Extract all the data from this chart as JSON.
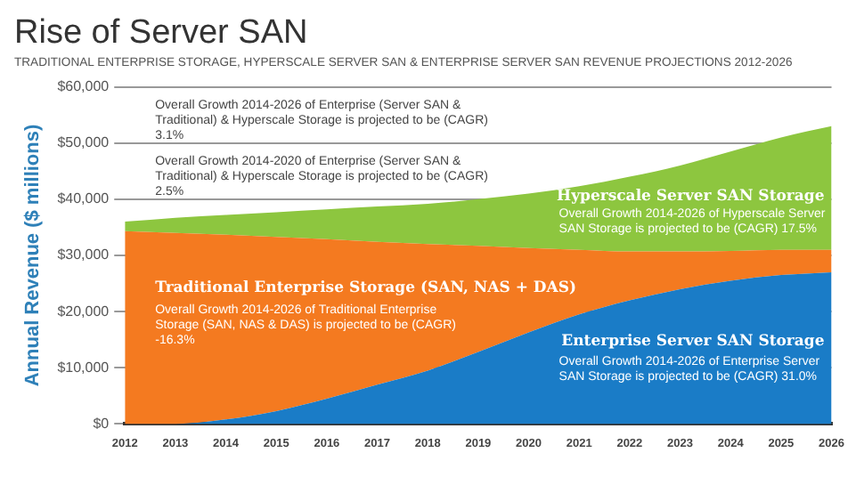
{
  "chart_data": {
    "type": "area",
    "stacked": true,
    "title": "Rise of Server SAN",
    "subtitle": "TRADITIONAL ENTERPRISE STORAGE, HYPERSCALE SERVER SAN & ENTERPRISE SERVER SAN REVENUE PROJECTIONS 2012-2026",
    "ylabel": "Annual Revenue ($ millions)",
    "categories": [
      "2012",
      "2013",
      "2014",
      "2015",
      "2016",
      "2017",
      "2018",
      "2019",
      "2020",
      "2021",
      "2022",
      "2023",
      "2024",
      "2025",
      "2026"
    ],
    "series": [
      {
        "name": "Enterprise Server SAN Storage",
        "color": "#1a7cc7",
        "values": [
          0,
          0,
          800,
          2300,
          4500,
          7000,
          9500,
          12800,
          16300,
          19500,
          22000,
          24000,
          25500,
          26500,
          27000
        ]
      },
      {
        "name": "Traditional Enterprise Storage (SAN, NAS + DAS)",
        "color": "#f47a20",
        "values": [
          34300,
          34000,
          32900,
          31000,
          28400,
          25400,
          22500,
          18900,
          15000,
          11500,
          8700,
          6700,
          5300,
          4500,
          4000
        ]
      },
      {
        "name": "Hyperscale Server SAN Storage",
        "color": "#8dc63f",
        "values": [
          1700,
          2700,
          3500,
          4400,
          5300,
          6300,
          7200,
          8300,
          9700,
          11300,
          13300,
          15300,
          17700,
          20000,
          22000
        ]
      }
    ],
    "ylim": [
      0,
      60000
    ],
    "yticks": [
      {
        "value": 0,
        "label": "$0"
      },
      {
        "value": 10000,
        "label": "$10,000"
      },
      {
        "value": 20000,
        "label": "$20,000"
      },
      {
        "value": 30000,
        "label": "$30,000"
      },
      {
        "value": 40000,
        "label": "$40,000"
      },
      {
        "value": 50000,
        "label": "$50,000"
      },
      {
        "value": 60000,
        "label": "$60,000"
      }
    ],
    "grid": "y",
    "annotations": [
      "Overall Growth 2014-2026 of Enterprise (Server SAN & Traditional) & Hyperscale Storage is projected to be (CAGR) 3.1%",
      "Overall Growth 2014-2020 of Enterprise (Server SAN & Traditional) & Hyperscale Storage is projected to be (CAGR) 2.5%",
      "Overall Growth 2014-2026 of Traditional Enterprise Storage (SAN, NAS & DAS) is projected to be (CAGR) -16.3%",
      "Overall Growth 2014-2026 of Hyperscale Server SAN Storage is projected to be (CAGR) 17.5%",
      "Overall Growth 2014-2026 of Enterprise Server SAN Storage is projected to be (CAGR) 31.0%"
    ]
  }
}
